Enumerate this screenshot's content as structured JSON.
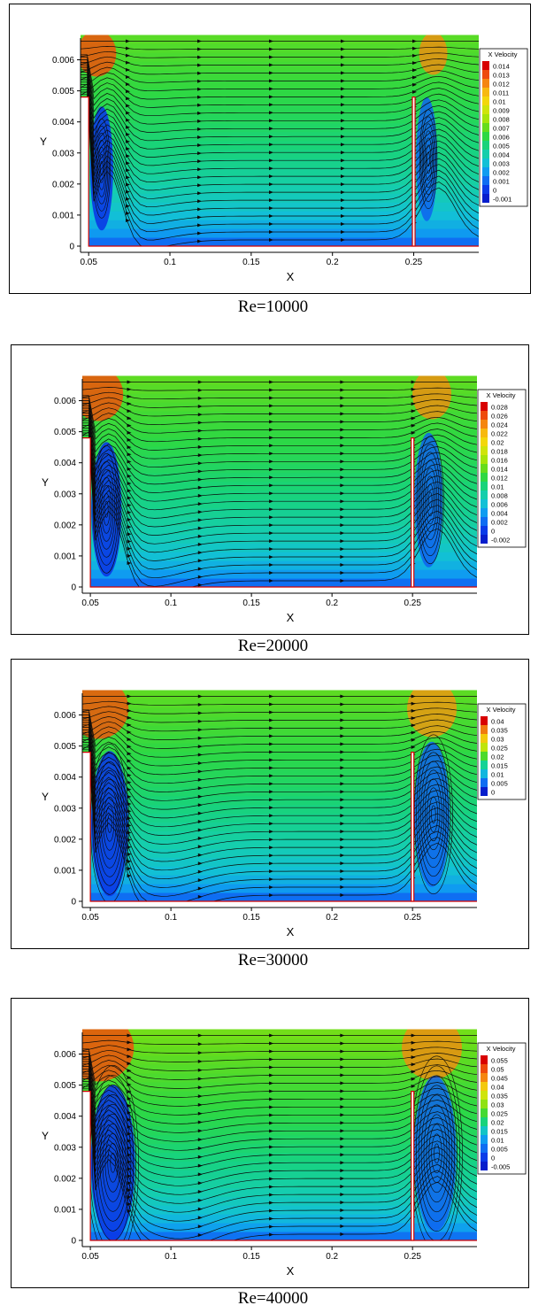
{
  "chart_data": [
    {
      "type": "heatmap",
      "caption": "Re=10000",
      "xlabel": "X",
      "ylabel": "Y",
      "xlim": [
        0.045,
        0.29
      ],
      "ylim": [
        -0.0002,
        0.0067
      ],
      "x_ticks": [
        "0.05",
        "0.1",
        "0.15",
        "0.2",
        "0.25"
      ],
      "y_ticks": [
        "0",
        "0.001",
        "0.002",
        "0.003",
        "0.004",
        "0.005",
        "0.006"
      ],
      "legend_title": "X Velocity",
      "legend_position": "right",
      "legend_levels": [
        "0.014",
        "0.013",
        "0.012",
        "0.011",
        "0.01",
        "0.009",
        "0.008",
        "0.007",
        "0.006",
        "0.005",
        "0.004",
        "0.003",
        "0.002",
        "0.001",
        "0",
        "-0.001"
      ],
      "legend_colors": [
        "#d80000",
        "#ee4a0c",
        "#f5860f",
        "#f7b90f",
        "#f3d70a",
        "#cfe40a",
        "#a6e40a",
        "#66dc1c",
        "#2ed843",
        "#18d37a",
        "#15ceac",
        "#12c0d6",
        "#0f9cf0",
        "#0f6df2",
        "#0a3be8",
        "#061ecc"
      ],
      "color_range": [
        -0.001,
        0.014
      ],
      "channel_level": 0.0068
    },
    {
      "type": "heatmap",
      "caption": "Re=20000",
      "xlabel": "X",
      "ylabel": "Y",
      "xlim": [
        0.045,
        0.29
      ],
      "ylim": [
        -0.0002,
        0.0067
      ],
      "x_ticks": [
        "0.05",
        "0.1",
        "0.15",
        "0.2",
        "0.25"
      ],
      "y_ticks": [
        "0",
        "0.001",
        "0.002",
        "0.003",
        "0.004",
        "0.005",
        "0.006"
      ],
      "legend_title": "X Velocity",
      "legend_position": "right",
      "legend_levels": [
        "0.028",
        "0.026",
        "0.024",
        "0.022",
        "0.02",
        "0.018",
        "0.016",
        "0.014",
        "0.012",
        "0.01",
        "0.008",
        "0.006",
        "0.004",
        "0.002",
        "0",
        "-0.002"
      ],
      "legend_colors": [
        "#d80000",
        "#ee4a0c",
        "#f5860f",
        "#f7b90f",
        "#f3d70a",
        "#cfe40a",
        "#a6e40a",
        "#66dc1c",
        "#2ed843",
        "#18d37a",
        "#15ceac",
        "#12c0d6",
        "#0f9cf0",
        "#0f6df2",
        "#0a3be8",
        "#061ecc"
      ],
      "color_range": [
        -0.002,
        0.028
      ],
      "channel_level": 0.0138
    },
    {
      "type": "heatmap",
      "caption": "Re=30000",
      "xlabel": "X",
      "ylabel": "Y",
      "xlim": [
        0.045,
        0.29
      ],
      "ylim": [
        -0.0002,
        0.0067
      ],
      "x_ticks": [
        "0.05",
        "0.1",
        "0.15",
        "0.2",
        "0.25"
      ],
      "y_ticks": [
        "0",
        "0.001",
        "0.002",
        "0.003",
        "0.004",
        "0.005",
        "0.006"
      ],
      "legend_title": "X Velocity",
      "legend_position": "right",
      "legend_levels": [
        "0.04",
        "0.035",
        "0.03",
        "0.025",
        "0.02",
        "0.015",
        "0.01",
        "0.005",
        "0"
      ],
      "legend_colors": [
        "#d80000",
        "#f07a10",
        "#f3c90c",
        "#bfe40a",
        "#4cda2c",
        "#16d296",
        "#11b6de",
        "#0f6df2",
        "#061ecc"
      ],
      "color_range": [
        0,
        0.04
      ],
      "channel_level": 0.021
    },
    {
      "type": "heatmap",
      "caption": "Re=40000",
      "xlabel": "X",
      "ylabel": "Y",
      "xlim": [
        0.045,
        0.29
      ],
      "ylim": [
        -0.0002,
        0.0067
      ],
      "x_ticks": [
        "0.05",
        "0.1",
        "0.15",
        "0.2",
        "0.25"
      ],
      "y_ticks": [
        "0",
        "0.001",
        "0.002",
        "0.003",
        "0.004",
        "0.005",
        "0.006"
      ],
      "legend_title": "X Velocity",
      "legend_position": "right",
      "legend_levels": [
        "0.055",
        "0.05",
        "0.045",
        "0.04",
        "0.035",
        "0.03",
        "0.025",
        "0.02",
        "0.015",
        "0.01",
        "0.005",
        "0",
        "-0.005"
      ],
      "legend_colors": [
        "#d80000",
        "#ee4a0c",
        "#f5860f",
        "#f3c90c",
        "#cfe40a",
        "#8fe214",
        "#44d934",
        "#18d37a",
        "#13c4c6",
        "#0f9cf0",
        "#0f6df2",
        "#0a3be8",
        "#061ecc"
      ],
      "color_range": [
        -0.005,
        0.055
      ],
      "channel_level": 0.028
    }
  ]
}
